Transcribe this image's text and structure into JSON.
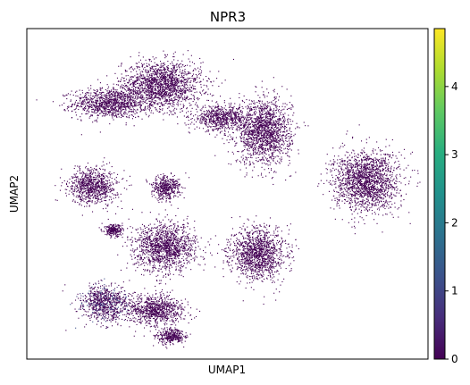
{
  "chart_data": {
    "type": "scatter",
    "title": "NPR3",
    "xlabel": "UMAP1",
    "ylabel": "UMAP2",
    "x_ticks": [],
    "y_ticks": [],
    "grid": false,
    "colorbar": {
      "colormap": "viridis",
      "range": [
        0,
        4.85
      ],
      "ticks": [
        "0",
        "1",
        "2",
        "3",
        "4"
      ]
    },
    "point_color_low": "#440154",
    "point_color_high": "#fde725",
    "clusters": [
      {
        "center": [
          0.205,
          0.775
        ],
        "spread": [
          0.1,
          0.05
        ],
        "expr": 0
      },
      {
        "center": [
          0.335,
          0.83
        ],
        "spread": [
          0.11,
          0.08
        ],
        "expr": 0
      },
      {
        "center": [
          0.48,
          0.73
        ],
        "spread": [
          0.07,
          0.04
        ],
        "expr": 0
      },
      {
        "center": [
          0.59,
          0.69
        ],
        "spread": [
          0.075,
          0.11
        ],
        "expr": 0
      },
      {
        "center": [
          0.845,
          0.54
        ],
        "spread": [
          0.09,
          0.1
        ],
        "expr": 0
      },
      {
        "center": [
          0.165,
          0.525
        ],
        "spread": [
          0.065,
          0.06
        ],
        "expr": 0
      },
      {
        "center": [
          0.345,
          0.52
        ],
        "spread": [
          0.04,
          0.04
        ],
        "expr": 0
      },
      {
        "center": [
          0.215,
          0.39
        ],
        "spread": [
          0.025,
          0.02
        ],
        "expr": 0
      },
      {
        "center": [
          0.345,
          0.34
        ],
        "spread": [
          0.085,
          0.08
        ],
        "expr": 0
      },
      {
        "center": [
          0.575,
          0.32
        ],
        "spread": [
          0.075,
          0.085
        ],
        "expr": 0
      },
      {
        "center": [
          0.195,
          0.17
        ],
        "spread": [
          0.065,
          0.06
        ],
        "expr": 0.9
      },
      {
        "center": [
          0.32,
          0.15
        ],
        "spread": [
          0.08,
          0.05
        ],
        "expr": 0
      },
      {
        "center": [
          0.36,
          0.07
        ],
        "spread": [
          0.04,
          0.025
        ],
        "expr": 0
      }
    ]
  }
}
